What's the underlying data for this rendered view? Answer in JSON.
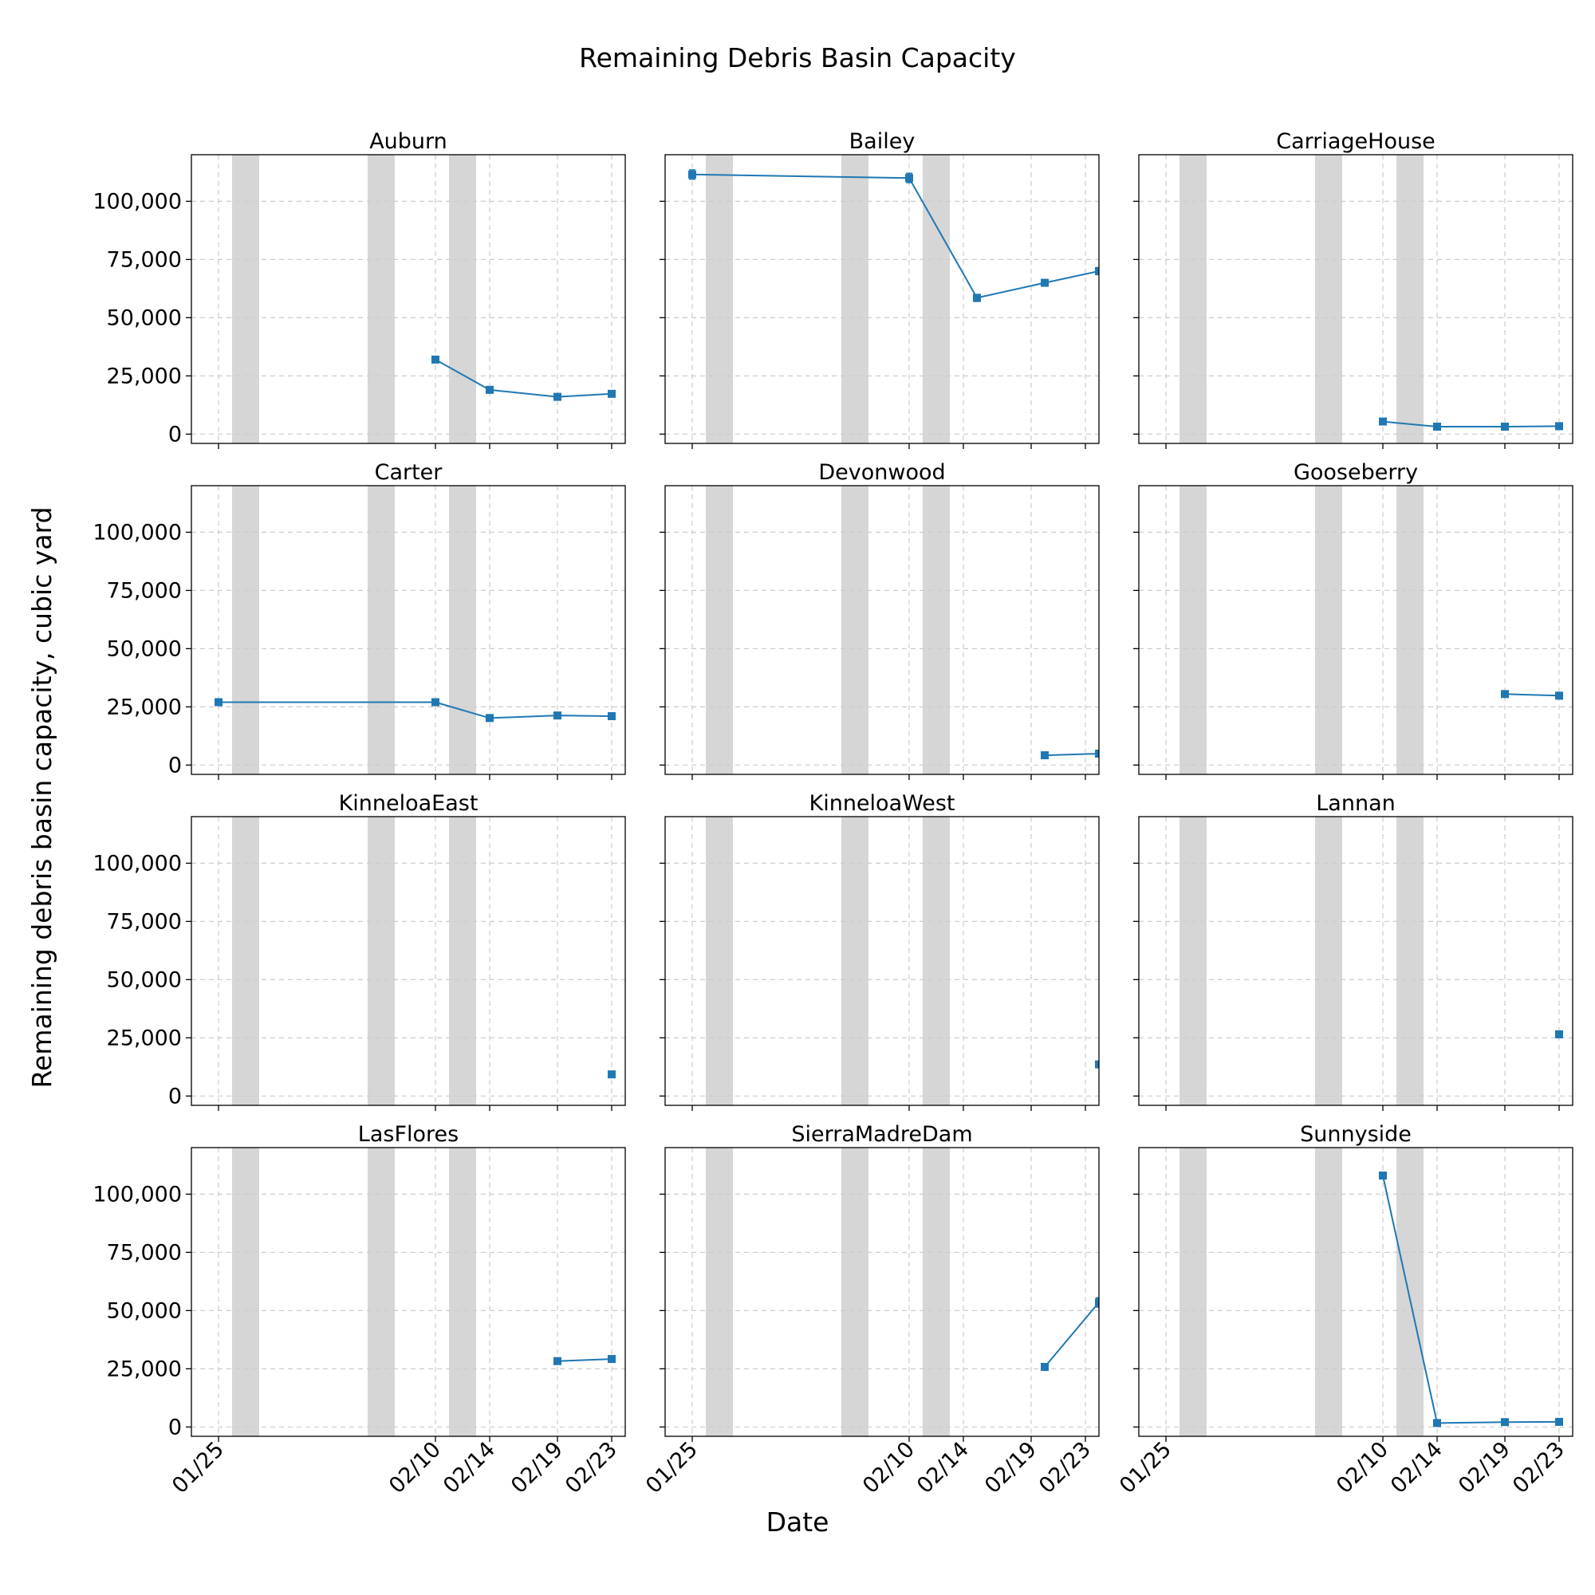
{
  "figure": {
    "title": "Remaining Debris Basin Capacity",
    "xlabel": "Date",
    "ylabel": "Remaining debris basin capacity, cubic yard"
  },
  "chart_data": {
    "type": "line",
    "layout": "4x3 grid of subplots, shared x and y axes",
    "x_unit": "date",
    "x_ticks": [
      "01/25",
      "02/10",
      "02/14",
      "02/19",
      "02/23"
    ],
    "x_tick_dates": [
      "2025-01-25",
      "2025-02-10",
      "2025-02-14",
      "2025-02-19",
      "2025-02-23"
    ],
    "xlim": [
      "2025-01-23",
      "2025-02-24"
    ],
    "ylim": [
      -4000,
      120000
    ],
    "y_ticks": [
      0,
      25000,
      50000,
      75000,
      100000
    ],
    "y_tick_labels": [
      "0",
      "25,000",
      "50,000",
      "75,000",
      "100,000"
    ],
    "grid": true,
    "series_color": "#1f77b4",
    "marker": "square",
    "shaded_periods_color": "#d6d6d6",
    "shaded_periods": [
      [
        "2025-01-26",
        "2025-01-28"
      ],
      [
        "2025-02-05",
        "2025-02-07"
      ],
      [
        "2025-02-11",
        "2025-02-13"
      ]
    ],
    "panels": [
      {
        "title": "Auburn",
        "dates": [
          "2025-02-10",
          "2025-02-14",
          "2025-02-19",
          "2025-02-23"
        ],
        "values": [
          32000,
          19000,
          16000,
          17300
        ]
      },
      {
        "title": "Bailey",
        "dates": [
          "2025-01-25",
          "2025-02-10",
          "2025-02-15",
          "2025-02-20",
          "2025-02-24"
        ],
        "values": [
          111500,
          110000,
          58500,
          65000,
          70000
        ],
        "error": [
          2000,
          2000,
          1500,
          1000,
          1500
        ]
      },
      {
        "title": "CarriageHouse",
        "dates": [
          "2025-02-10",
          "2025-02-14",
          "2025-02-19",
          "2025-02-23"
        ],
        "values": [
          5400,
          3200,
          3200,
          3400
        ]
      },
      {
        "title": "Carter",
        "dates": [
          "2025-01-25",
          "2025-02-10",
          "2025-02-14",
          "2025-02-19",
          "2025-02-23"
        ],
        "values": [
          27000,
          27000,
          20200,
          21300,
          21000
        ]
      },
      {
        "title": "Devonwood",
        "dates": [
          "2025-02-20",
          "2025-02-24"
        ],
        "values": [
          4200,
          4900
        ]
      },
      {
        "title": "Gooseberry",
        "dates": [
          "2025-02-19",
          "2025-02-23"
        ],
        "values": [
          30500,
          29800
        ]
      },
      {
        "title": "KinneloaEast",
        "dates": [
          "2025-02-23"
        ],
        "values": [
          9300
        ]
      },
      {
        "title": "KinneloaWest",
        "dates": [
          "2025-02-24"
        ],
        "values": [
          13600
        ]
      },
      {
        "title": "Lannan",
        "dates": [
          "2025-02-23"
        ],
        "values": [
          26500
        ]
      },
      {
        "title": "LasFlores",
        "dates": [
          "2025-02-19",
          "2025-02-23"
        ],
        "values": [
          28300,
          29200
        ]
      },
      {
        "title": "SierraMadreDam",
        "dates": [
          "2025-02-20",
          "2025-02-24"
        ],
        "values": [
          25800,
          53500
        ],
        "error": [
          500,
          2000
        ]
      },
      {
        "title": "Sunnyside",
        "dates": [
          "2025-02-10",
          "2025-02-14",
          "2025-02-19",
          "2025-02-23"
        ],
        "values": [
          108000,
          1700,
          2100,
          2200
        ]
      }
    ]
  }
}
